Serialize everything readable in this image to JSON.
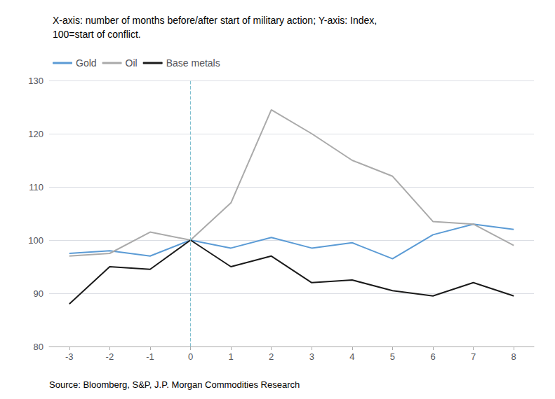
{
  "chart_data": {
    "type": "line",
    "subtitle": [
      "X-axis: number of months before/after start of military action; Y-axis: Index,",
      "100=start of conflict."
    ],
    "annotations": [
      "Source: Bloomberg, S&P, J.P. Morgan Commodities Research"
    ],
    "x": [
      -3,
      -2,
      -1,
      0,
      1,
      2,
      3,
      4,
      5,
      6,
      7,
      8
    ],
    "series": [
      {
        "name": "Gold",
        "color": "#5b9bd5",
        "values": [
          97.5,
          98.0,
          97.0,
          100.0,
          98.5,
          100.5,
          98.5,
          99.5,
          96.5,
          101.0,
          103.0,
          102.0
        ]
      },
      {
        "name": "Oil",
        "color": "#aaaaaa",
        "values": [
          97.0,
          97.5,
          101.5,
          100.0,
          107.0,
          124.5,
          120.0,
          115.0,
          112.0,
          103.5,
          103.0,
          99.0
        ]
      },
      {
        "name": "Base metals",
        "color": "#1a1a1a",
        "values": [
          88.0,
          95.0,
          94.5,
          100.0,
          95.0,
          97.0,
          92.0,
          92.5,
          90.5,
          89.5,
          92.0,
          89.5
        ]
      }
    ],
    "vline_x": 0,
    "xlim": [
      -3.5,
      8.5
    ],
    "xticks": [
      -3,
      -2,
      -1,
      0,
      1,
      2,
      3,
      4,
      5,
      6,
      7,
      8
    ],
    "ylim": [
      80,
      130
    ],
    "yticks": [
      80,
      90,
      100,
      110,
      120,
      130
    ],
    "grid": true,
    "legend": "upper left"
  }
}
